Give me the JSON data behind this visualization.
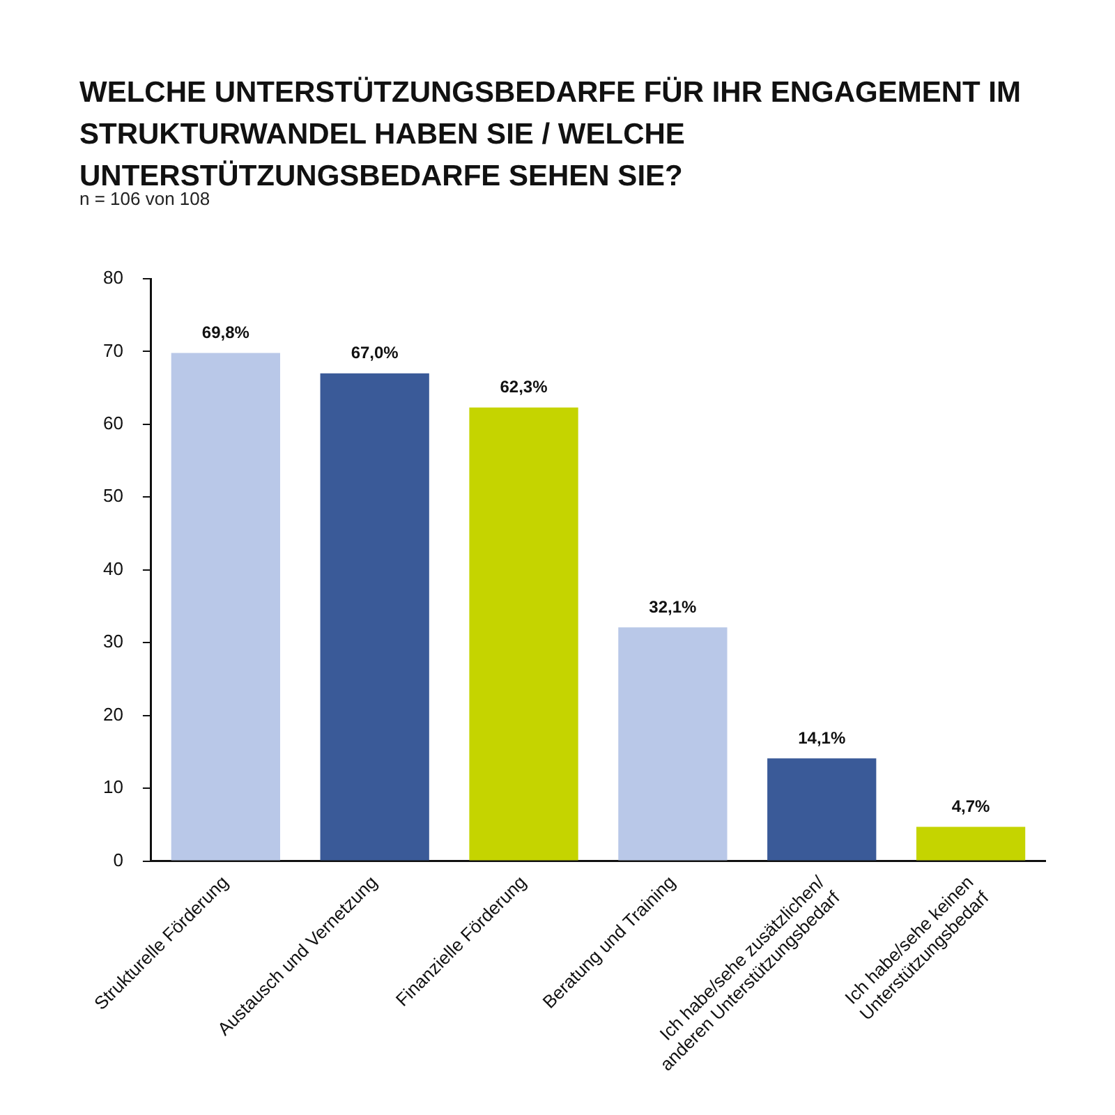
{
  "chart_data": {
    "type": "bar",
    "title": "WELCHE UNTERSTÜTZUNGSBEDARFE FÜR IHR ENGAGEMENT IM STRUKTURWANDEL HABEN SIE / WELCHE UNTERSTÜTZUNGSBEDARFE SEHEN SIE?",
    "subtitle": "n = 106 von 108",
    "categories": [
      "Strukturelle Förderung",
      "Austausch und Vernetzung",
      "Finanzielle Förderung",
      "Beratung und Training",
      "Ich habe/sehe zusätzlichen/\nanderen Unterstützungsbedarf",
      "Ich habe/sehe keinen\nUnterstützungsbedarf"
    ],
    "values": [
      69.8,
      67.0,
      62.3,
      32.1,
      14.1,
      4.7
    ],
    "colors": [
      "#b9c8e8",
      "#3a5a98",
      "#c5d400",
      "#b9c8e8",
      "#3a5a98",
      "#c5d400"
    ],
    "value_labels": [
      "69,8%",
      "67,0%",
      "62,3%",
      "32,1%",
      "14,1%",
      "4,7%"
    ],
    "ylim": [
      0,
      80
    ],
    "yticks": [
      0,
      10,
      20,
      30,
      40,
      50,
      60,
      70,
      80
    ],
    "grid": false,
    "legend": false
  }
}
